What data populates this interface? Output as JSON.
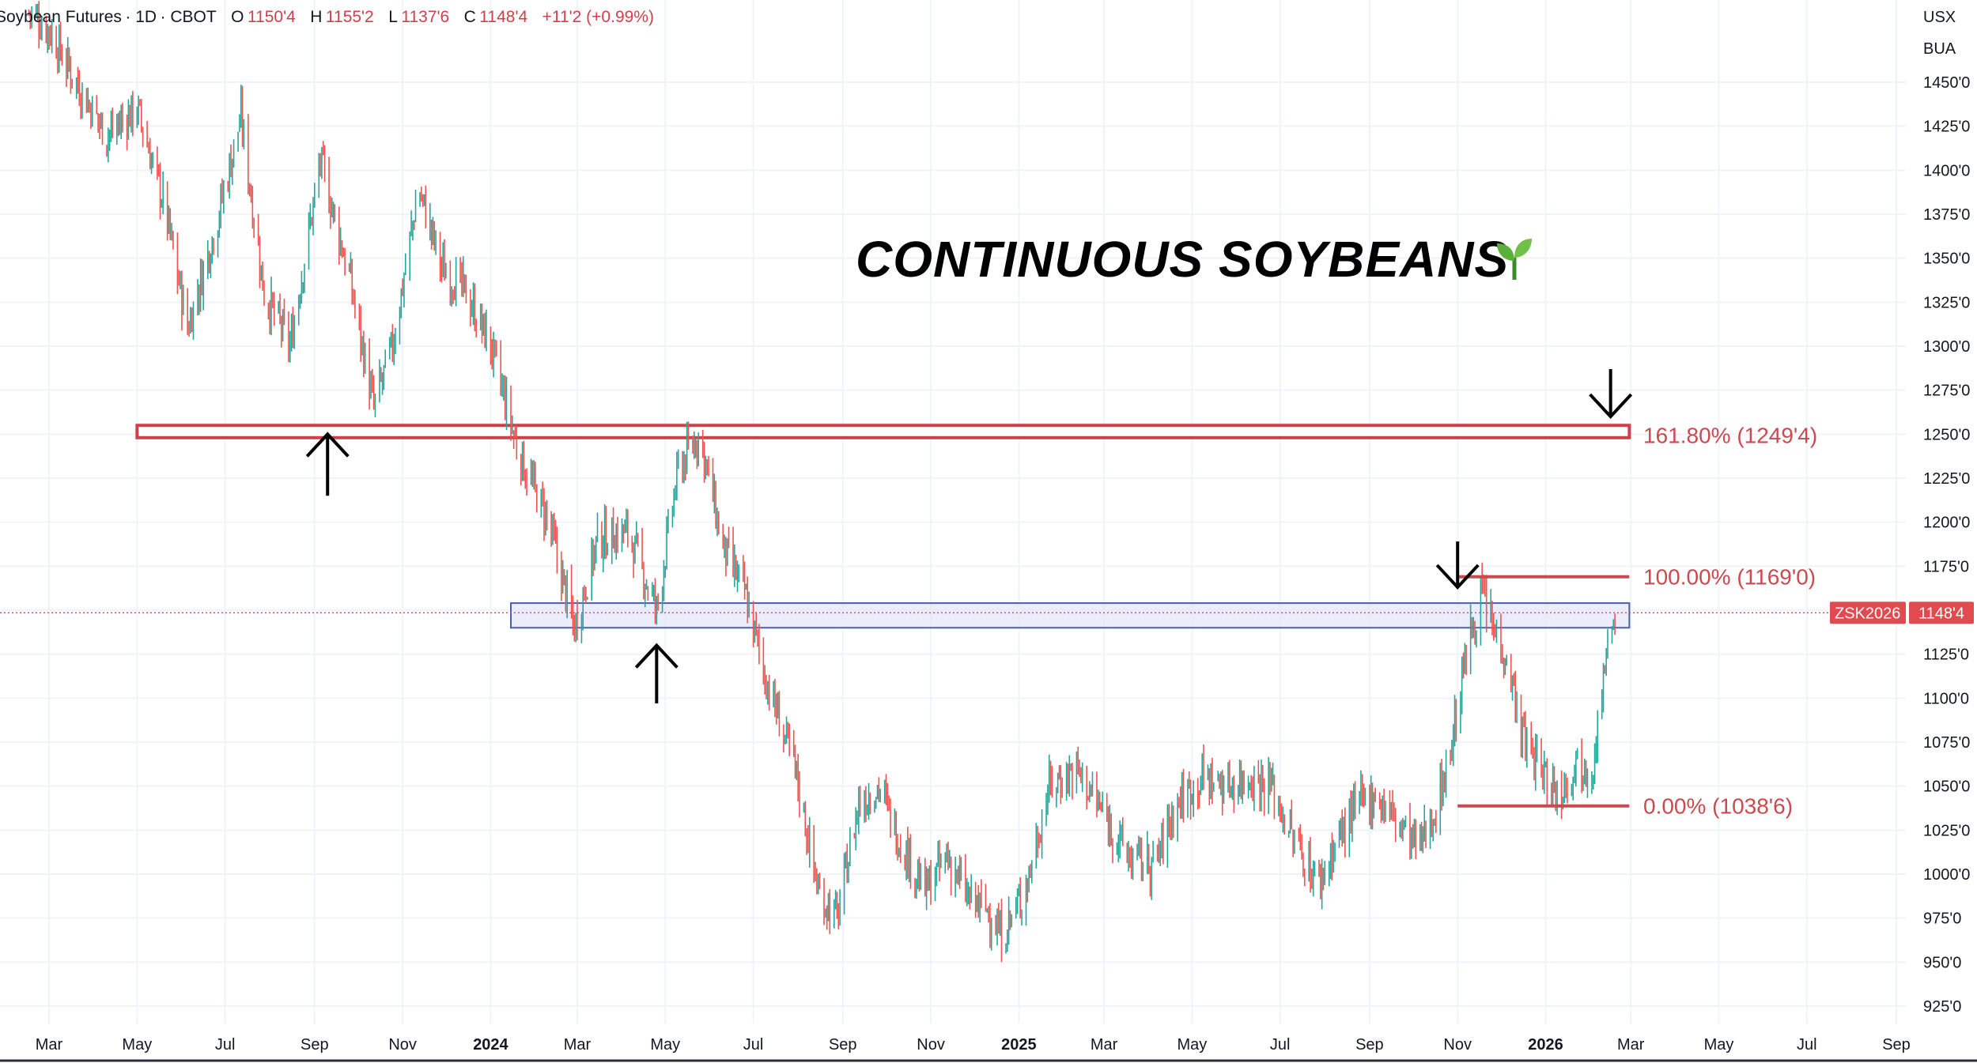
{
  "header": {
    "symbol_name": "Soybean Futures",
    "interval": "1D",
    "exchange": "CBOT",
    "open_label": "O",
    "open": "1150'4",
    "high_label": "H",
    "high": "1155'2",
    "low_label": "L",
    "low": "1137'6",
    "close_label": "C",
    "close": "1148'4",
    "change": "+11'2 (+0.99%)"
  },
  "axis_top_labels": {
    "currency": "USX",
    "unit": "BUA"
  },
  "price_tag": {
    "symbol": "ZSK2026",
    "price": "1148'4"
  },
  "colors": {
    "up": "#26a69a",
    "down": "#ef5350",
    "fib": "#c94a4f",
    "resistance_box": "#d1404a",
    "zone_fill": "#e3e6fb",
    "zone_border": "#4a5fb0",
    "price_tag_bg": "#e04b50"
  },
  "chart_data": {
    "type": "candlestick",
    "title": "CONTINUOUS SOYBEANS",
    "title_icon": "seedling-icon",
    "y_axis": {
      "range": [
        915,
        1500
      ],
      "ticks": [
        925,
        950,
        975,
        1000,
        1025,
        1050,
        1075,
        1100,
        1125,
        1150,
        1175,
        1200,
        1225,
        1250,
        1275,
        1300,
        1325,
        1350,
        1375,
        1400,
        1425,
        1450
      ],
      "tick_labels": [
        "925'0",
        "950'0",
        "975'0",
        "1000'0",
        "1025'0",
        "1050'0",
        "1075'0",
        "1100'0",
        "1125'0",
        "1150'0",
        "1175'0",
        "1200'0",
        "1225'0",
        "1250'0",
        "1275'0",
        "1300'0",
        "1325'0",
        "1350'0",
        "1375'0",
        "1400'0",
        "1425'0",
        "1450'0"
      ]
    },
    "x_axis": {
      "range": [
        "2023-02-15",
        "2026-09-20"
      ],
      "ticks": [
        {
          "date": "2023-03-01",
          "label": "Mar",
          "bold": false
        },
        {
          "date": "2023-05-01",
          "label": "May",
          "bold": false
        },
        {
          "date": "2023-07-01",
          "label": "Jul",
          "bold": false
        },
        {
          "date": "2023-09-01",
          "label": "Sep",
          "bold": false
        },
        {
          "date": "2023-11-01",
          "label": "Nov",
          "bold": false
        },
        {
          "date": "2024-01-01",
          "label": "2024",
          "bold": true
        },
        {
          "date": "2024-03-01",
          "label": "Mar",
          "bold": false
        },
        {
          "date": "2024-05-01",
          "label": "May",
          "bold": false
        },
        {
          "date": "2024-07-01",
          "label": "Jul",
          "bold": false
        },
        {
          "date": "2024-09-01",
          "label": "Sep",
          "bold": false
        },
        {
          "date": "2024-11-01",
          "label": "Nov",
          "bold": false
        },
        {
          "date": "2025-01-01",
          "label": "2025",
          "bold": true
        },
        {
          "date": "2025-03-01",
          "label": "Mar",
          "bold": false
        },
        {
          "date": "2025-05-01",
          "label": "May",
          "bold": false
        },
        {
          "date": "2025-07-01",
          "label": "Jul",
          "bold": false
        },
        {
          "date": "2025-09-01",
          "label": "Sep",
          "bold": false
        },
        {
          "date": "2025-11-01",
          "label": "Nov",
          "bold": false
        },
        {
          "date": "2026-01-01",
          "label": "2026",
          "bold": true
        },
        {
          "date": "2026-03-01",
          "label": "Mar",
          "bold": false
        },
        {
          "date": "2026-05-01",
          "label": "May",
          "bold": false
        },
        {
          "date": "2026-07-01",
          "label": "Jul",
          "bold": false
        },
        {
          "date": "2026-09-01",
          "label": "Sep",
          "bold": false
        }
      ]
    },
    "price_path": [
      [
        "2023-02-15",
        1490
      ],
      [
        "2023-03-01",
        1480
      ],
      [
        "2023-03-20",
        1450
      ],
      [
        "2023-04-10",
        1420
      ],
      [
        "2023-05-01",
        1435
      ],
      [
        "2023-05-20",
        1380
      ],
      [
        "2023-06-05",
        1310
      ],
      [
        "2023-06-25",
        1370
      ],
      [
        "2023-07-12",
        1430
      ],
      [
        "2023-07-28",
        1330
      ],
      [
        "2023-08-15",
        1300
      ],
      [
        "2023-09-05",
        1405
      ],
      [
        "2023-09-25",
        1340
      ],
      [
        "2023-10-12",
        1265
      ],
      [
        "2023-10-25",
        1300
      ],
      [
        "2023-11-12",
        1390
      ],
      [
        "2023-11-28",
        1345
      ],
      [
        "2023-12-15",
        1330
      ],
      [
        "2024-01-01",
        1300
      ],
      [
        "2024-01-20",
        1240
      ],
      [
        "2024-02-10",
        1200
      ],
      [
        "2024-02-28",
        1140
      ],
      [
        "2024-03-15",
        1190
      ],
      [
        "2024-04-05",
        1195
      ],
      [
        "2024-04-25",
        1150
      ],
      [
        "2024-05-10",
        1230
      ],
      [
        "2024-05-25",
        1250
      ],
      [
        "2024-06-10",
        1185
      ],
      [
        "2024-06-25",
        1160
      ],
      [
        "2024-07-10",
        1110
      ],
      [
        "2024-07-30",
        1060
      ],
      [
        "2024-08-15",
        990
      ],
      [
        "2024-08-28",
        975
      ],
      [
        "2024-09-12",
        1040
      ],
      [
        "2024-09-26",
        1050
      ],
      [
        "2024-10-10",
        1020
      ],
      [
        "2024-10-28",
        990
      ],
      [
        "2024-11-12",
        1010
      ],
      [
        "2024-11-28",
        985
      ],
      [
        "2024-12-10",
        980
      ],
      [
        "2024-12-20",
        965
      ],
      [
        "2025-01-05",
        990
      ],
      [
        "2025-01-22",
        1050
      ],
      [
        "2025-02-10",
        1060
      ],
      [
        "2025-02-28",
        1035
      ],
      [
        "2025-03-18",
        1010
      ],
      [
        "2025-04-05",
        1005
      ],
      [
        "2025-04-20",
        1040
      ],
      [
        "2025-05-08",
        1055
      ],
      [
        "2025-05-25",
        1050
      ],
      [
        "2025-06-10",
        1055
      ],
      [
        "2025-06-25",
        1050
      ],
      [
        "2025-07-10",
        1020
      ],
      [
        "2025-07-28",
        995
      ],
      [
        "2025-08-10",
        1020
      ],
      [
        "2025-08-25",
        1040
      ],
      [
        "2025-09-05",
        1045
      ],
      [
        "2025-09-20",
        1030
      ],
      [
        "2025-10-05",
        1015
      ],
      [
        "2025-10-18",
        1040
      ],
      [
        "2025-10-28",
        1075
      ],
      [
        "2025-11-08",
        1130
      ],
      [
        "2025-11-18",
        1160
      ],
      [
        "2025-11-25",
        1140
      ],
      [
        "2025-12-05",
        1125
      ],
      [
        "2025-12-15",
        1080
      ],
      [
        "2025-12-28",
        1060
      ],
      [
        "2026-01-10",
        1045
      ],
      [
        "2026-01-22",
        1065
      ],
      [
        "2026-02-02",
        1060
      ],
      [
        "2026-02-10",
        1110
      ],
      [
        "2026-02-18",
        1148.5
      ]
    ],
    "resistance_zone": {
      "from": "2023-05-01",
      "to": "2026-02-28",
      "low": 1248,
      "high": 1255
    },
    "support_zone": {
      "from": "2024-01-15",
      "to": "2026-02-28",
      "low": 1140,
      "high": 1154
    },
    "current_price": 1148.5,
    "fib_levels": [
      {
        "price": 1169.0,
        "label": "100.00% (1169'0)",
        "from": "2025-11-01",
        "to": "2026-02-28"
      },
      {
        "price": 1038.75,
        "label": "0.00% (1038'6)",
        "from": "2025-11-01",
        "to": "2026-02-28"
      }
    ],
    "fib_extension_label": "161.80% (1249'4)",
    "fib_extension_price": 1249.5,
    "arrows": [
      {
        "date": "2023-09-10",
        "direction": "up",
        "price_top": 1250,
        "price_bottom": 1215
      },
      {
        "date": "2024-04-25",
        "direction": "up",
        "price_top": 1130,
        "price_bottom": 1097
      },
      {
        "date": "2025-11-01",
        "direction": "down",
        "price_top": 1189,
        "price_bottom": 1163
      },
      {
        "date": "2026-02-15",
        "direction": "down",
        "price_top": 1287,
        "price_bottom": 1260
      }
    ]
  }
}
